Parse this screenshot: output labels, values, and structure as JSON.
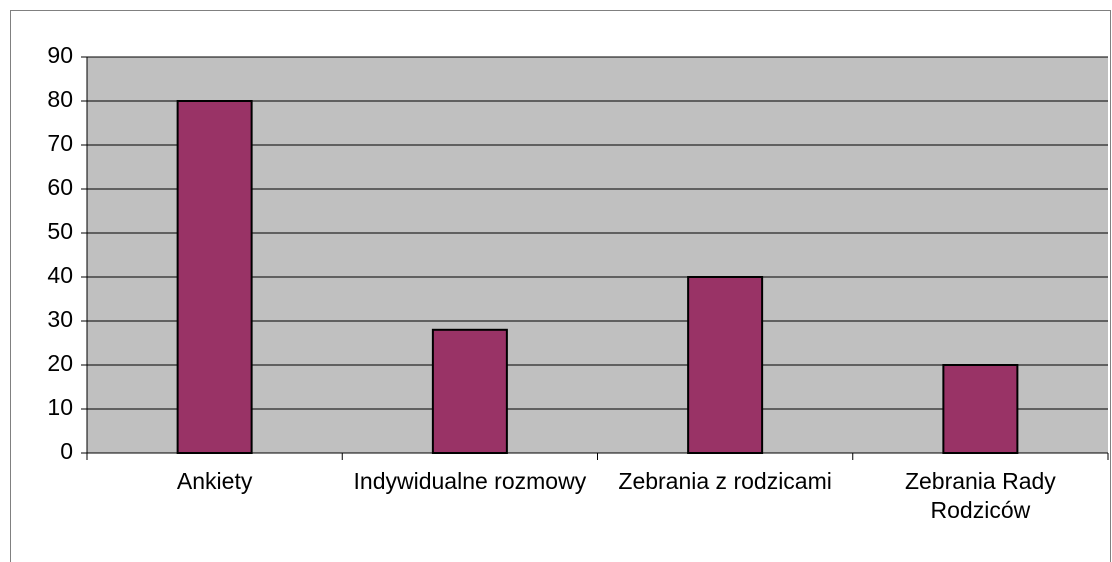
{
  "chart_data": {
    "type": "bar",
    "categories": [
      "Ankiety",
      "Indywidualne rozmowy",
      "Zebrania z rodzicami",
      "Zebrania Rady Rodziców"
    ],
    "values": [
      80,
      28,
      40,
      20
    ],
    "color": "#993366",
    "ylim": [
      0,
      90
    ],
    "yticks": [
      0,
      10,
      20,
      30,
      40,
      50,
      60,
      70,
      80,
      90
    ],
    "grid": true
  }
}
